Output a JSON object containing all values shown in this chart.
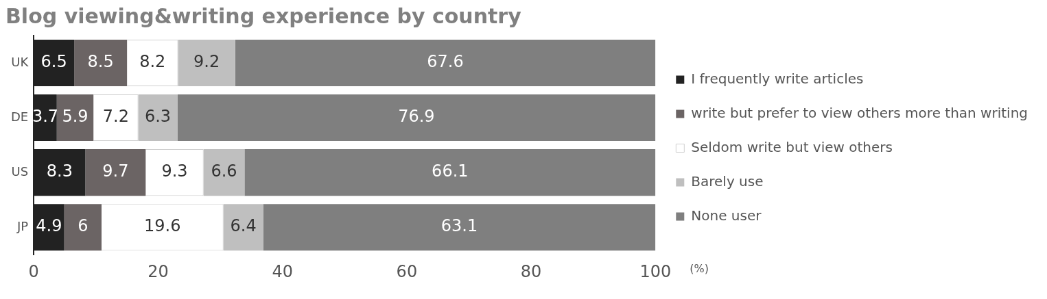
{
  "chart_data": {
    "type": "bar",
    "orientation": "horizontal",
    "stacked": true,
    "title": "Blog viewing&writing experience by country",
    "xlabel": "(%)",
    "categories": [
      "UK",
      "DE",
      "US",
      "JP"
    ],
    "series": [
      {
        "name": "I frequently write articles",
        "color": "#222222",
        "values": [
          6.5,
          3.7,
          8.3,
          4.9
        ]
      },
      {
        "name": "write but prefer to view others more than writing",
        "color": "#6b6464",
        "values": [
          8.5,
          5.9,
          9.7,
          6
        ]
      },
      {
        "name": "Seldom write but view others",
        "color": "#ffffff",
        "values": [
          8.2,
          7.2,
          9.3,
          19.6
        ]
      },
      {
        "name": "Barely use",
        "color": "#bfbfbf",
        "values": [
          9.2,
          6.3,
          6.6,
          6.4
        ]
      },
      {
        "name": "None user",
        "color": "#7f7f7f",
        "values": [
          67.6,
          76.9,
          66.1,
          63.1
        ]
      }
    ],
    "xlim": [
      0,
      100
    ],
    "xticks": [
      0,
      20,
      40,
      60,
      80,
      100
    ],
    "grid": false,
    "legend": "right",
    "data_labels": true
  }
}
